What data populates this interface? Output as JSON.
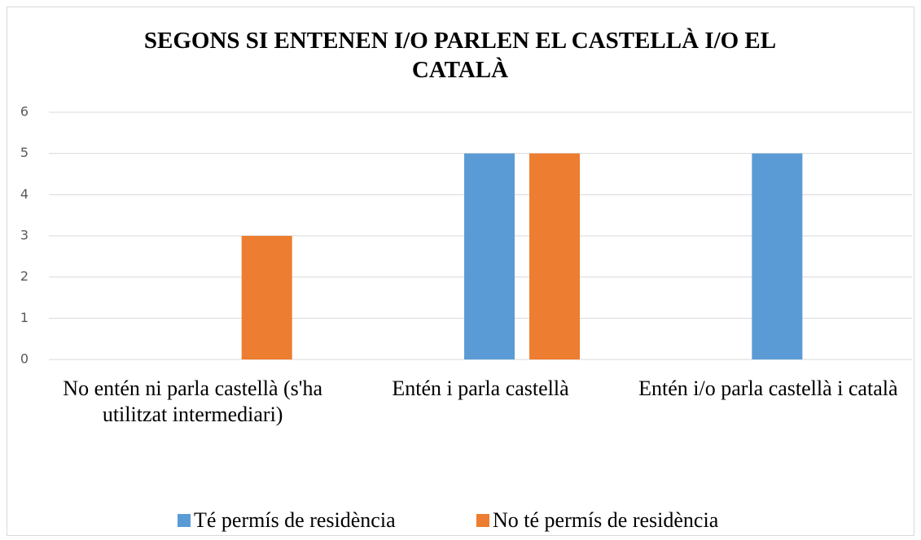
{
  "chart_data": {
    "type": "bar",
    "title": "SEGONS SI ENTENEN I/O PARLEN EL CASTELLÀ I/O EL CATALÀ",
    "categories": [
      "No entén ni parla castellà (s'ha utilitzat intermediari)",
      "Entén i parla castellà",
      "Entén i/o parla castellà i català"
    ],
    "series": [
      {
        "name": "Té permís de residència",
        "color": "#5b9bd5",
        "values": [
          0,
          5,
          5
        ]
      },
      {
        "name": "No té permís de residència",
        "color": "#ed7d31",
        "values": [
          3,
          5,
          0
        ]
      }
    ],
    "ylim": [
      0,
      6
    ],
    "yticks": [
      0,
      1,
      2,
      3,
      4,
      5,
      6
    ],
    "grid": true,
    "legend": "bottom"
  }
}
